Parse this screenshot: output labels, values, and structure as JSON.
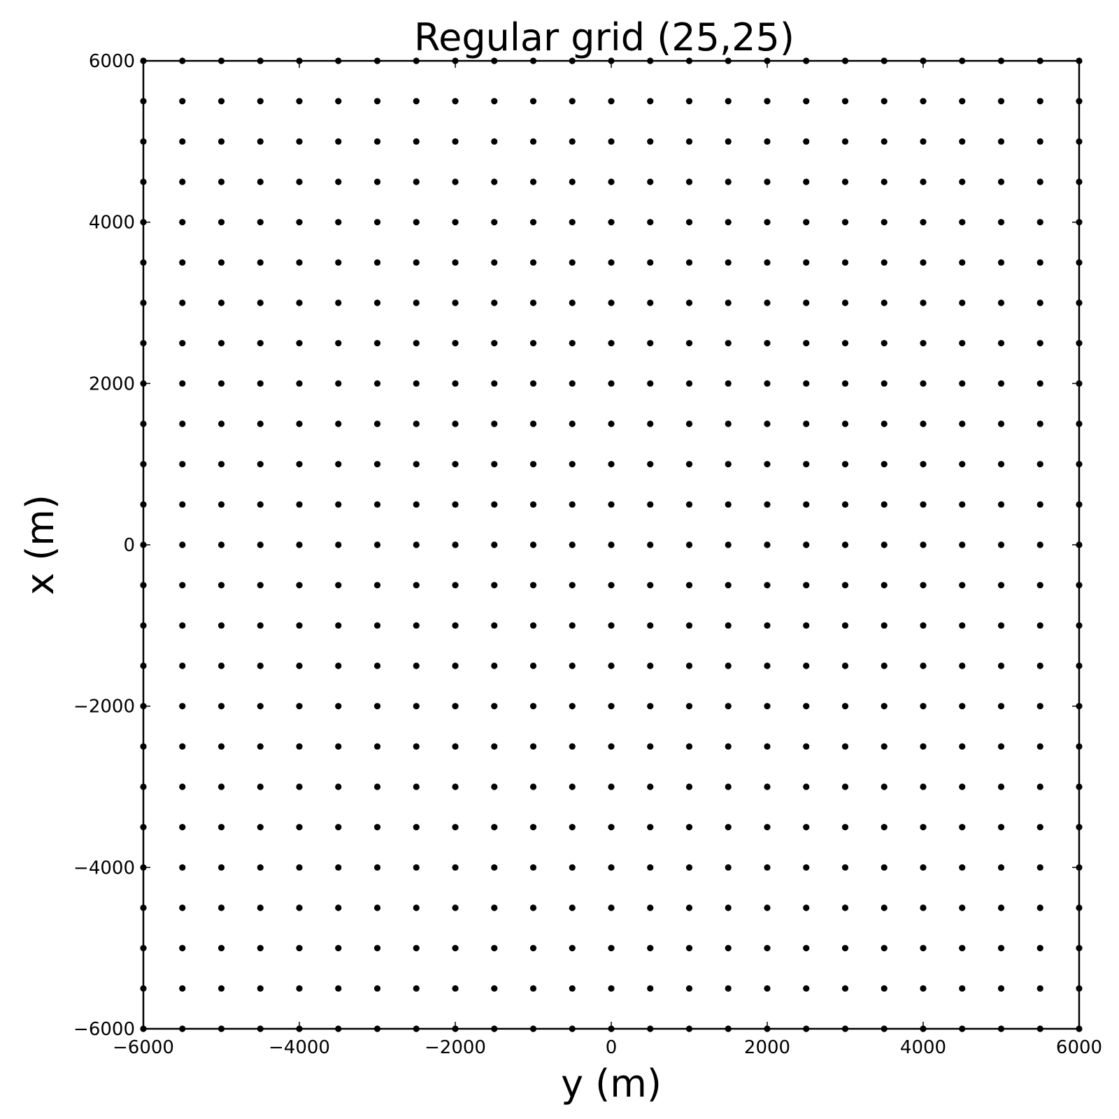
{
  "chart_data": {
    "type": "scatter",
    "title": "Regular grid (25,25)",
    "xlabel": "y (m)",
    "ylabel": "x (m)",
    "xlim": [
      -6000,
      6000
    ],
    "ylim": [
      -6000,
      6000
    ],
    "x_ticks": [
      -6000,
      -4000,
      -2000,
      0,
      2000,
      4000,
      6000
    ],
    "y_ticks": [
      -6000,
      -4000,
      -2000,
      0,
      2000,
      4000,
      6000
    ],
    "x_tick_labels": [
      "−6000",
      "−4000",
      "−2000",
      "0",
      "2000",
      "4000",
      "6000"
    ],
    "y_tick_labels": [
      "−6000",
      "−4000",
      "−2000",
      "0",
      "2000",
      "4000",
      "6000"
    ],
    "grid": false,
    "marker_color": "#000000",
    "series": [
      {
        "grid_shape": [
          25,
          25
        ],
        "x_values": [
          -6000,
          -5500,
          -5000,
          -4500,
          -4000,
          -3500,
          -3000,
          -2500,
          -2000,
          -1500,
          -1000,
          -500,
          0,
          500,
          1000,
          1500,
          2000,
          2500,
          3000,
          3500,
          4000,
          4500,
          5000,
          5500,
          6000
        ],
        "y_values": [
          -6000,
          -5500,
          -5000,
          -4500,
          -4000,
          -3500,
          -3000,
          -2500,
          -2000,
          -1500,
          -1000,
          -500,
          0,
          500,
          1000,
          1500,
          2000,
          2500,
          3000,
          3500,
          4000,
          4500,
          5000,
          5500,
          6000
        ]
      }
    ]
  }
}
